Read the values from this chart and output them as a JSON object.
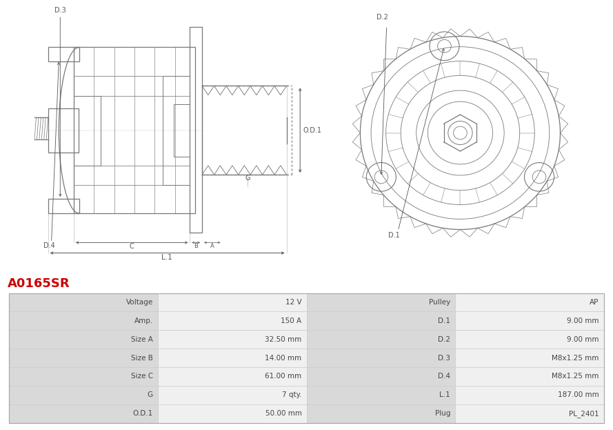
{
  "title": "A0165SR",
  "title_color": "#cc0000",
  "bg_color": "#ffffff",
  "table_rows": [
    [
      "Voltage",
      "12 V",
      "Pulley",
      "AP"
    ],
    [
      "Amp.",
      "150 A",
      "D.1",
      "9.00 mm"
    ],
    [
      "Size A",
      "32.50 mm",
      "D.2",
      "9.00 mm"
    ],
    [
      "Size B",
      "14.00 mm",
      "D.3",
      "M8x1.25 mm"
    ],
    [
      "Size C",
      "61.00 mm",
      "D.4",
      "M8x1.25 mm"
    ],
    [
      "G",
      "7 qty.",
      "L.1",
      "187.00 mm"
    ],
    [
      "O.D.1",
      "50.00 mm",
      "Plug",
      "PL_2401"
    ]
  ],
  "header_bg": "#d9d9d9",
  "value_bg": "#f0f0f0",
  "table_text_color": "#444444",
  "border_color": "#cccccc",
  "line_color": "#777777",
  "dim_line_color": "#555555"
}
